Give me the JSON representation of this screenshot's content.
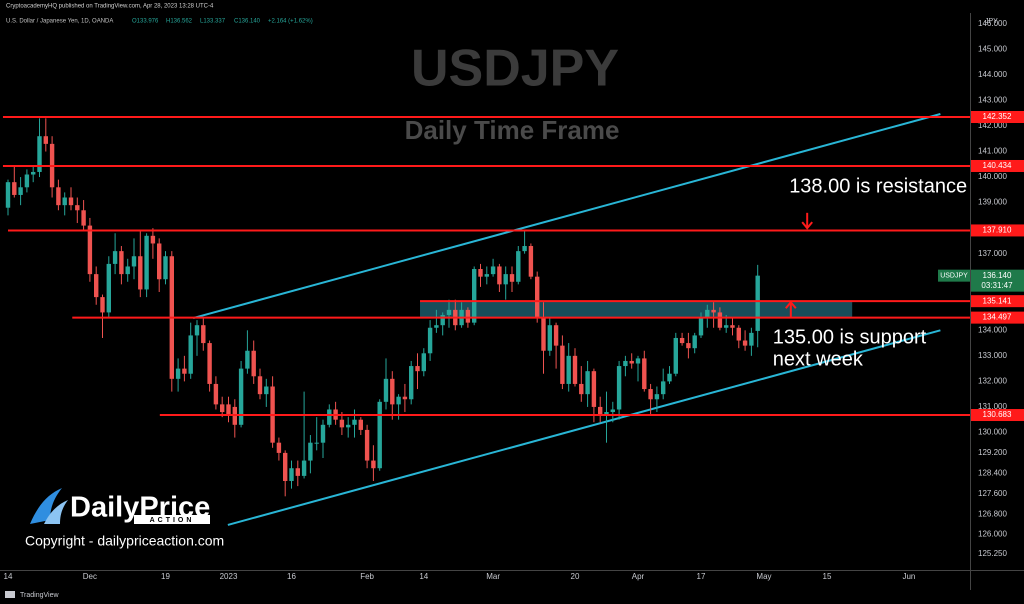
{
  "header": {
    "publisher": "CryptoacademyHQ published on TradingView.com, Apr 28, 2023 13:28 UTC-4",
    "instrument": "U.S. Dollar / Japanese Yen, 1D, OANDA",
    "ohlc": [
      "O133.976",
      "H136.562",
      "L133.337",
      "C136.140"
    ],
    "change": "+2.164 (+1.62%)"
  },
  "chart_data": {
    "type": "candlestick",
    "title": "USDJPY",
    "subtitle": "Daily Time Frame",
    "axis_label": "JPY",
    "colors": {
      "up": "#26a69a",
      "down": "#ef5350",
      "level": "#ff1a1a",
      "trend": "#29b6d6",
      "zone": "#1c5a6a"
    },
    "ohlc": [
      [
        138.8,
        139.9,
        138.5,
        139.8
      ],
      [
        139.8,
        140.4,
        139.2,
        139.3
      ],
      [
        139.3,
        140.0,
        138.9,
        139.6
      ],
      [
        139.6,
        140.3,
        139.4,
        140.1
      ],
      [
        140.1,
        140.4,
        139.8,
        140.2
      ],
      [
        140.2,
        142.3,
        140.0,
        141.6
      ],
      [
        141.6,
        142.3,
        141.0,
        141.3
      ],
      [
        141.3,
        141.6,
        139.2,
        139.6
      ],
      [
        139.6,
        139.9,
        138.7,
        138.9
      ],
      [
        138.9,
        139.4,
        138.5,
        139.2
      ],
      [
        139.2,
        139.6,
        138.7,
        138.9
      ],
      [
        138.9,
        139.2,
        138.2,
        138.7
      ],
      [
        138.7,
        139.1,
        137.9,
        138.1
      ],
      [
        138.1,
        138.4,
        135.9,
        136.2
      ],
      [
        136.2,
        136.5,
        135.0,
        135.3
      ],
      [
        135.3,
        135.4,
        133.7,
        134.7
      ],
      [
        134.7,
        136.9,
        134.5,
        136.6
      ],
      [
        136.6,
        137.8,
        136.2,
        137.1
      ],
      [
        137.1,
        137.3,
        135.8,
        136.2
      ],
      [
        136.2,
        136.8,
        135.9,
        136.5
      ],
      [
        136.5,
        137.6,
        136.0,
        136.9
      ],
      [
        136.9,
        137.9,
        135.3,
        135.6
      ],
      [
        135.6,
        137.8,
        135.3,
        137.7
      ],
      [
        137.7,
        138.0,
        136.8,
        137.4
      ],
      [
        137.4,
        137.6,
        135.5,
        136.0
      ],
      [
        136.0,
        137.1,
        135.8,
        136.9
      ],
      [
        136.9,
        137.1,
        131.6,
        132.1
      ],
      [
        132.1,
        132.9,
        131.6,
        132.5
      ],
      [
        132.5,
        133.0,
        132.0,
        132.3
      ],
      [
        132.3,
        134.3,
        132.1,
        133.8
      ],
      [
        133.8,
        134.4,
        133.0,
        134.2
      ],
      [
        134.2,
        134.5,
        133.2,
        133.5
      ],
      [
        133.5,
        133.6,
        131.6,
        131.9
      ],
      [
        131.9,
        132.2,
        130.9,
        131.1
      ],
      [
        131.1,
        131.4,
        130.6,
        130.8
      ],
      [
        131.1,
        131.4,
        130.4,
        130.7
      ],
      [
        131.0,
        131.3,
        129.8,
        130.3
      ],
      [
        130.3,
        132.8,
        130.2,
        132.5
      ],
      [
        132.5,
        134.0,
        132.3,
        133.2
      ],
      [
        133.2,
        133.6,
        131.9,
        132.2
      ],
      [
        132.2,
        132.5,
        131.3,
        131.5
      ],
      [
        131.5,
        132.1,
        131.0,
        131.8
      ],
      [
        131.8,
        132.2,
        129.4,
        129.6
      ],
      [
        129.6,
        129.8,
        128.9,
        129.2
      ],
      [
        129.2,
        129.3,
        127.5,
        128.1
      ],
      [
        128.1,
        128.9,
        127.8,
        128.6
      ],
      [
        128.6,
        128.9,
        127.9,
        128.3
      ],
      [
        128.3,
        131.6,
        128.2,
        128.9
      ],
      [
        128.9,
        129.9,
        128.4,
        129.6
      ],
      [
        129.6,
        130.6,
        129.3,
        129.6
      ],
      [
        129.6,
        130.5,
        129.0,
        130.3
      ],
      [
        130.3,
        131.1,
        130.2,
        130.9
      ],
      [
        130.9,
        131.2,
        130.3,
        130.5
      ],
      [
        130.5,
        130.8,
        129.9,
        130.2
      ],
      [
        130.2,
        130.6,
        129.8,
        130.3
      ],
      [
        130.3,
        130.9,
        129.8,
        130.5
      ],
      [
        130.5,
        130.6,
        129.9,
        130.1
      ],
      [
        130.1,
        130.3,
        128.6,
        128.9
      ],
      [
        128.9,
        129.5,
        128.1,
        128.6
      ],
      [
        128.6,
        131.3,
        128.5,
        131.2
      ],
      [
        131.2,
        132.9,
        130.9,
        132.1
      ],
      [
        132.1,
        132.4,
        130.5,
        131.1
      ],
      [
        131.1,
        131.5,
        130.5,
        131.4
      ],
      [
        131.4,
        131.9,
        130.8,
        131.3
      ],
      [
        131.3,
        132.8,
        131.1,
        132.6
      ],
      [
        132.6,
        133.1,
        131.7,
        132.4
      ],
      [
        132.4,
        133.3,
        132.2,
        133.1
      ],
      [
        133.1,
        134.4,
        132.8,
        134.1
      ],
      [
        134.1,
        134.8,
        133.9,
        134.2
      ],
      [
        134.2,
        134.7,
        133.8,
        134.6
      ],
      [
        134.6,
        135.2,
        134.1,
        134.8
      ],
      [
        134.8,
        135.2,
        134.0,
        134.2
      ],
      [
        134.2,
        135.1,
        134.1,
        134.8
      ],
      [
        134.8,
        134.9,
        134.1,
        134.3
      ],
      [
        134.3,
        136.5,
        134.2,
        136.4
      ],
      [
        136.4,
        136.6,
        135.7,
        136.1
      ],
      [
        136.1,
        136.5,
        135.8,
        136.2
      ],
      [
        136.2,
        136.8,
        136.1,
        136.5
      ],
      [
        136.5,
        136.6,
        135.5,
        135.8
      ],
      [
        135.8,
        136.5,
        135.2,
        136.2
      ],
      [
        136.2,
        136.5,
        135.5,
        135.9
      ],
      [
        135.9,
        137.3,
        135.8,
        137.1
      ],
      [
        137.1,
        137.9,
        137.0,
        137.3
      ],
      [
        137.3,
        137.4,
        136.0,
        136.1
      ],
      [
        136.1,
        136.3,
        134.3,
        134.5
      ],
      [
        134.5,
        135.1,
        132.3,
        133.2
      ],
      [
        133.2,
        134.5,
        133.0,
        134.2
      ],
      [
        134.2,
        134.3,
        132.5,
        133.4
      ],
      [
        133.4,
        133.8,
        131.7,
        131.9
      ],
      [
        131.9,
        133.5,
        131.6,
        133.0
      ],
      [
        133.0,
        133.3,
        131.8,
        131.9
      ],
      [
        131.9,
        132.6,
        131.2,
        131.5
      ],
      [
        131.5,
        132.8,
        131.0,
        132.4
      ],
      [
        132.4,
        132.5,
        130.4,
        131.0
      ],
      [
        131.0,
        131.4,
        130.4,
        130.7
      ],
      [
        130.7,
        131.6,
        129.6,
        130.8
      ],
      [
        130.8,
        131.2,
        130.4,
        130.9
      ],
      [
        130.9,
        132.8,
        130.5,
        132.6
      ],
      [
        132.6,
        133.0,
        132.2,
        132.8
      ],
      [
        132.8,
        133.1,
        132.5,
        132.7
      ],
      [
        132.7,
        133.0,
        132.0,
        132.9
      ],
      [
        132.9,
        133.2,
        131.6,
        131.7
      ],
      [
        131.7,
        131.9,
        130.7,
        131.3
      ],
      [
        131.3,
        131.8,
        130.8,
        131.5
      ],
      [
        131.5,
        132.5,
        131.3,
        132.0
      ],
      [
        132.0,
        132.6,
        131.9,
        132.3
      ],
      [
        132.3,
        133.9,
        132.2,
        133.7
      ],
      [
        133.7,
        133.9,
        133.4,
        133.5
      ],
      [
        133.5,
        133.9,
        132.9,
        133.3
      ],
      [
        133.3,
        133.9,
        133.1,
        133.8
      ],
      [
        133.8,
        134.7,
        133.7,
        134.5
      ],
      [
        134.5,
        135.0,
        134.1,
        134.8
      ],
      [
        134.8,
        135.1,
        134.1,
        134.7
      ],
      [
        134.7,
        134.9,
        134.0,
        134.1
      ],
      [
        134.1,
        134.6,
        133.9,
        134.2
      ],
      [
        134.2,
        134.5,
        133.8,
        134.1
      ],
      [
        134.1,
        134.2,
        133.3,
        133.6
      ],
      [
        133.6,
        134.0,
        133.2,
        133.4
      ],
      [
        133.4,
        134.1,
        133.0,
        133.9
      ],
      [
        133.976,
        136.562,
        133.337,
        136.14
      ]
    ],
    "ylim": [
      124.615,
      146.424
    ],
    "yticks": [
      {
        "value": 146,
        "label": "146.000"
      },
      {
        "value": 145,
        "label": "145.000"
      },
      {
        "value": 144,
        "label": "144.000"
      },
      {
        "value": 143,
        "label": "143.000"
      },
      {
        "value": 142,
        "label": "142.000"
      },
      {
        "value": 141,
        "label": "141.000"
      },
      {
        "value": 140,
        "label": "140.000"
      },
      {
        "value": 139,
        "label": "139.000"
      },
      {
        "value": 137,
        "label": "137.000"
      },
      {
        "value": 134,
        "label": "134.000"
      },
      {
        "value": 133,
        "label": "133.000"
      },
      {
        "value": 132,
        "label": "132.000"
      },
      {
        "value": 131,
        "label": "131.000"
      },
      {
        "value": 130,
        "label": "130.000"
      },
      {
        "value": 129.2,
        "label": "129.200"
      },
      {
        "value": 128.4,
        "label": "128.400"
      },
      {
        "value": 127.6,
        "label": "127.600"
      },
      {
        "value": 126.8,
        "label": "126.800"
      },
      {
        "value": 126,
        "label": "126.000"
      },
      {
        "value": 125.25,
        "label": "125.250"
      }
    ],
    "xlim": [
      -1.27,
      152.7
    ],
    "xticks": [
      {
        "value": 0,
        "label": "14"
      },
      {
        "value": 13,
        "label": "Dec"
      },
      {
        "value": 25,
        "label": "19"
      },
      {
        "value": 35,
        "label": "2023"
      },
      {
        "value": 45,
        "label": "16"
      },
      {
        "value": 57,
        "label": "Feb"
      },
      {
        "value": 66,
        "label": "14"
      },
      {
        "value": 77,
        "label": "Mar"
      },
      {
        "value": 90,
        "label": "20"
      },
      {
        "value": 100,
        "label": "Apr"
      },
      {
        "value": 110,
        "label": "17"
      },
      {
        "value": 120,
        "label": "May"
      },
      {
        "value": 130,
        "label": "15"
      },
      {
        "value": 143,
        "label": "Jun"
      }
    ],
    "levels": [
      {
        "value": 142.352,
        "x0": -0.8
      },
      {
        "value": 140.434,
        "x0": -0.8
      },
      {
        "value": 137.91,
        "label": "137.910",
        "x0": 0
      },
      {
        "value": 135.141,
        "x0": 65.4
      },
      {
        "value": 134.497,
        "x0": 10.2
      },
      {
        "value": 130.683,
        "x0": 24.1
      }
    ],
    "zone": {
      "x": [
        65.4,
        134
      ],
      "y": [
        134.497,
        135.141
      ]
    },
    "trendlines": [
      {
        "x": [
          29.4,
          148
        ],
        "y": [
          134.48,
          142.47
        ]
      },
      {
        "x": [
          34.9,
          148
        ],
        "y": [
          126.38,
          134.0
        ]
      }
    ],
    "annotations": [
      {
        "text": "138.00 is resistance",
        "x": 124,
        "y": 139.6,
        "arrow": [
          138.6,
          138.0
        ]
      },
      {
        "lines": [
          "135.00 is support",
          "next week"
        ],
        "x": 121.4,
        "y": 133.7,
        "arrow": [
          134.5,
          135.1
        ]
      }
    ],
    "last_price": {
      "symbol": "USDJPY",
      "value": 136.14,
      "label": "136.140",
      "countdown": "03:31:47"
    }
  },
  "branding": {
    "logo": "DailyPrice",
    "logo_sub": "ACTION",
    "copyright": "Copyright - dailypriceaction.com",
    "footer": "TradingView"
  }
}
